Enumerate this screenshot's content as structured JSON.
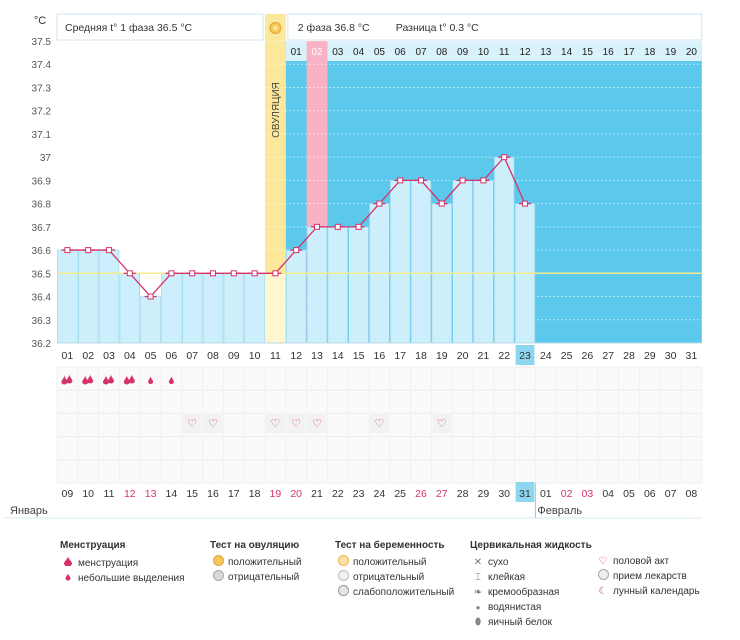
{
  "unit_label": "°C",
  "header": {
    "phase1_label": "Средняя t° 1 фаза",
    "phase1_value": "36.5 °C",
    "phase2_label": "2 фаза",
    "phase2_value": "36.8 °C",
    "diff_label": "Разница t°",
    "diff_value": "0.3 °C"
  },
  "ovulation_label": "ОВУЛЯЦИЯ",
  "colors": {
    "phase_bg": "#5bc8ec",
    "bar_fill": "#cdeffb",
    "bar_stroke": "#8fd3ee",
    "line": "#d6336c",
    "ovulation": "#fbe89a",
    "highlight_day": "#f9b2c3",
    "coverline": "#f3ec8a",
    "current_day": "#8cd6ef"
  },
  "chart_data": {
    "type": "line",
    "y_ticks": [
      "37.5",
      "37.4",
      "37.3",
      "37.2",
      "37.1",
      "37",
      "36.9",
      "36.8",
      "36.7",
      "36.6",
      "36.5",
      "36.4",
      "36.3",
      "36.2"
    ],
    "ylim": [
      36.2,
      37.5
    ],
    "coverline": 36.5,
    "ovulation_day_index": 10,
    "highlight_day_index": 12,
    "current_day_index": 22,
    "phase2_start_index": 11,
    "cycle_days": [
      "01",
      "02",
      "03",
      "04",
      "05",
      "06",
      "07",
      "08",
      "09",
      "10",
      "11",
      "12",
      "13",
      "14",
      "15",
      "16",
      "17",
      "18",
      "19",
      "20",
      "21",
      "22",
      "23",
      "24",
      "25",
      "26",
      "27",
      "28",
      "29",
      "30",
      "31"
    ],
    "phase2_days": [
      "01",
      "02",
      "03",
      "04",
      "05",
      "06",
      "07",
      "08",
      "09",
      "10",
      "11",
      "12",
      "13",
      "14",
      "15",
      "16",
      "17",
      "18",
      "19",
      "20"
    ],
    "temperatures": [
      36.6,
      36.6,
      36.6,
      36.5,
      36.4,
      36.5,
      36.5,
      36.5,
      36.5,
      36.5,
      36.5,
      36.6,
      36.7,
      36.7,
      36.7,
      36.8,
      36.9,
      36.9,
      36.8,
      36.9,
      36.9,
      37.0,
      36.8
    ],
    "dates": [
      "09",
      "10",
      "11",
      "12",
      "13",
      "14",
      "15",
      "16",
      "17",
      "18",
      "19",
      "20",
      "21",
      "22",
      "23",
      "24",
      "25",
      "26",
      "27",
      "28",
      "29",
      "30",
      "31",
      "01",
      "02",
      "03",
      "04",
      "05",
      "06",
      "07",
      "08"
    ],
    "weekend_indices": [
      3,
      4,
      10,
      11,
      17,
      18,
      24,
      25
    ],
    "menstruation": [
      "heavy",
      "heavy",
      "heavy",
      "heavy",
      "light",
      "light"
    ],
    "intercourse_indices": [
      6,
      7,
      10,
      11,
      12,
      15,
      18
    ],
    "month_labels": [
      {
        "index": 0,
        "text": "Январь"
      },
      {
        "index": 23,
        "text": "Февраль"
      }
    ]
  },
  "legend": {
    "menstruation": {
      "title": "Менструация",
      "items": [
        {
          "icon": "heavy",
          "label": "менструация"
        },
        {
          "icon": "light",
          "label": "небольшие выделения"
        }
      ]
    },
    "ovulation_test": {
      "title": "Тест на овуляцию",
      "items": [
        {
          "icon": "positive",
          "label": "положительный"
        },
        {
          "icon": "negative",
          "label": "отрицательный"
        }
      ]
    },
    "pregnancy_test": {
      "title": "Тест на беременность",
      "items": [
        {
          "icon": "positive",
          "label": "положительный"
        },
        {
          "icon": "negative",
          "label": "отрицательный"
        },
        {
          "icon": "weak",
          "label": "слабоположительный"
        }
      ]
    },
    "cervical": {
      "title": "Цервикальная жидкость",
      "items": [
        {
          "icon": "dry",
          "glyph": "✕",
          "label": "сухо"
        },
        {
          "icon": "sticky",
          "glyph": "⌶",
          "label": "клейкая"
        },
        {
          "icon": "creamy",
          "glyph": "❧",
          "label": "кремообразная"
        },
        {
          "icon": "watery",
          "glyph": "●",
          "label": "водянистая"
        },
        {
          "icon": "eggwhite",
          "glyph": "⬮",
          "label": "яичный белок"
        }
      ]
    },
    "other": {
      "items": [
        {
          "icon": "heart",
          "glyph": "♡",
          "label": "половой акт"
        },
        {
          "icon": "pill",
          "label": "прием лекарств"
        },
        {
          "icon": "moon",
          "glyph": "☾",
          "label": "лунный календарь"
        }
      ]
    }
  }
}
